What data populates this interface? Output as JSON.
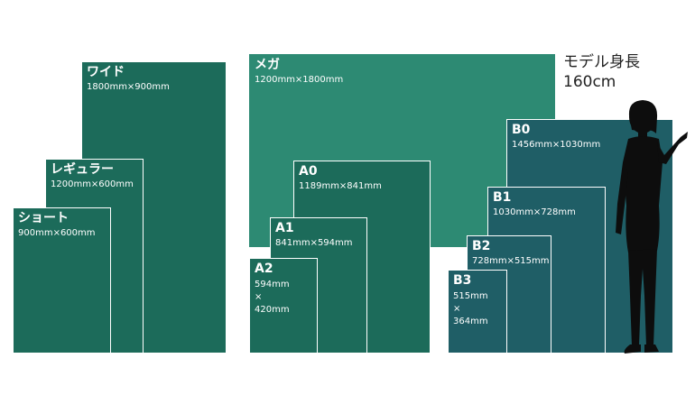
{
  "colors": {
    "dark_green": "#1c6b5a",
    "mid_green": "#2d8a73",
    "teal": "#1f5e66",
    "silhouette": "#0d0d0d"
  },
  "panels": {
    "wide": {
      "title": "ワイド",
      "dims": "1800mm×900mm"
    },
    "regular": {
      "title": "レギュラー",
      "dims": "1200mm×600mm"
    },
    "short": {
      "title": "ショート",
      "dims": "900mm×600mm"
    },
    "mega": {
      "title": "メガ",
      "dims": "1200mm×1800mm"
    },
    "a0": {
      "title": "A0",
      "dims": "1189mm×841mm"
    },
    "a1": {
      "title": "A1",
      "dims": "841mm×594mm"
    },
    "a2": {
      "title": "A2",
      "dims": "594mm\n×\n420mm"
    },
    "b0": {
      "title": "B0",
      "dims": "1456mm×1030mm"
    },
    "b1": {
      "title": "B1",
      "dims": "1030mm×728mm"
    },
    "b2": {
      "title": "B2",
      "dims": "728mm×515mm"
    },
    "b3": {
      "title": "B3",
      "dims": "515mm\n×\n364mm"
    }
  },
  "model": {
    "label": "モデル身長",
    "height": "160cm"
  }
}
